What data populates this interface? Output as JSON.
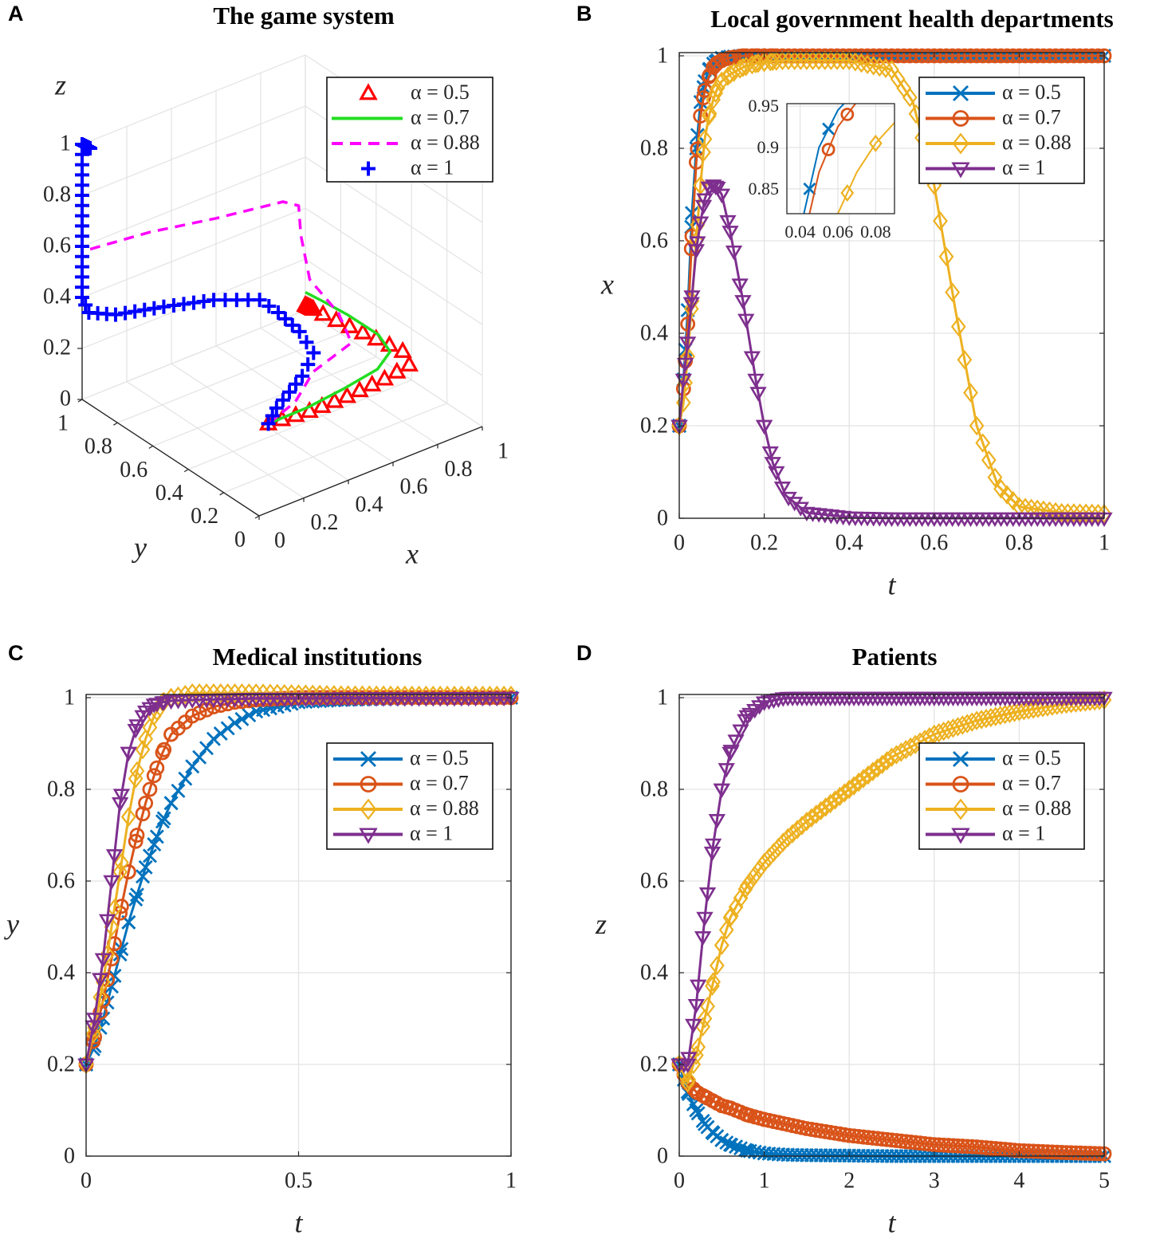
{
  "panels": [
    {
      "letter": "A",
      "title": "The game system"
    },
    {
      "letter": "B",
      "title": "Local government health departments"
    },
    {
      "letter": "C",
      "title": "Medical institutions"
    },
    {
      "letter": "D",
      "title": "Patients"
    }
  ],
  "chart_data": [
    {
      "panel": "A",
      "type": "line3d",
      "title": "The game system",
      "xlabel": "x",
      "ylabel": "y",
      "zlabel": "z",
      "xlim": [
        0,
        1
      ],
      "ylim": [
        0,
        1
      ],
      "zlim": [
        0,
        1
      ],
      "ticks": [
        0,
        0.2,
        0.4,
        0.6,
        0.8,
        1
      ],
      "tick_labels": [
        "0",
        "0.2",
        "0.4",
        "0.6",
        "0.8",
        "1"
      ],
      "grid": true,
      "legend": "top-right",
      "series": [
        {
          "name": "α = 0.5",
          "color": "#FF0000",
          "style": "markers",
          "marker": "triangle-up",
          "points": [
            [
              0.2,
              0.2,
              0.2
            ],
            [
              0.4,
              0.22,
              0.17
            ],
            [
              0.6,
              0.26,
              0.14
            ],
            [
              0.8,
              0.3,
              0.12
            ],
            [
              0.95,
              0.35,
              0.1
            ],
            [
              1,
              0.45,
              0.09
            ],
            [
              1,
              0.6,
              0.07
            ],
            [
              1,
              0.75,
              0.05
            ],
            [
              1,
              0.9,
              0.03
            ],
            [
              1,
              1,
              0.02
            ]
          ]
        },
        {
          "name": "α = 0.7",
          "color": "#22DD22",
          "style": "solid",
          "marker": "none",
          "points": [
            [
              0.2,
              0.2,
              0.2
            ],
            [
              0.4,
              0.23,
              0.18
            ],
            [
              0.6,
              0.28,
              0.16
            ],
            [
              0.8,
              0.34,
              0.14
            ],
            [
              0.92,
              0.42,
              0.13
            ],
            [
              0.97,
              0.55,
              0.12
            ],
            [
              0.99,
              0.75,
              0.1
            ],
            [
              1,
              0.9,
              0.08
            ],
            [
              1,
              1,
              0.07
            ]
          ]
        },
        {
          "name": "α = 0.88",
          "color": "#FF00FF",
          "style": "dashed",
          "marker": "none",
          "points": [
            [
              0.2,
              0.2,
              0.2
            ],
            [
              0.4,
              0.3,
              0.17
            ],
            [
              0.6,
              0.45,
              0.15
            ],
            [
              0.85,
              0.55,
              0.13
            ],
            [
              0.95,
              0.75,
              0.12
            ],
            [
              0.98,
              0.95,
              0.15
            ],
            [
              0.98,
              1,
              0.3
            ],
            [
              0.97,
              1,
              0.42
            ],
            [
              0.9,
              1,
              0.46
            ],
            [
              0.6,
              1,
              0.5
            ],
            [
              0.3,
              1,
              0.55
            ],
            [
              0,
              1,
              0.58
            ]
          ]
        },
        {
          "name": "α = 1",
          "color": "#0000FF",
          "style": "markers",
          "marker": "plus",
          "points": [
            [
              0.2,
              0.2,
              0.2
            ],
            [
              0.3,
              0.28,
              0.19
            ],
            [
              0.55,
              0.45,
              0.15
            ],
            [
              0.68,
              0.55,
              0.15
            ],
            [
              0.72,
              0.68,
              0.16
            ],
            [
              0.72,
              0.8,
              0.18
            ],
            [
              0.7,
              0.88,
              0.2
            ],
            [
              0.55,
              0.95,
              0.22
            ],
            [
              0.35,
              0.98,
              0.25
            ],
            [
              0.15,
              1,
              0.28
            ],
            [
              0.03,
              1,
              0.33
            ],
            [
              0,
              1,
              0.4
            ],
            [
              0,
              1,
              0.6
            ],
            [
              0,
              1,
              0.8
            ],
            [
              0,
              1,
              1
            ]
          ]
        }
      ]
    },
    {
      "panel": "B",
      "type": "line",
      "title": "Local government health departments",
      "xlabel": "t",
      "ylabel": "x",
      "xlim": [
        0,
        1
      ],
      "ylim": [
        0,
        1
      ],
      "xticks": [
        0,
        0.2,
        0.4,
        0.6,
        0.8,
        1
      ],
      "xtick_labels": [
        "0",
        "0.2",
        "0.4",
        "0.6",
        "0.8",
        "1"
      ],
      "yticks": [
        0,
        0.2,
        0.4,
        0.6,
        0.8,
        1
      ],
      "ytick_labels": [
        "0",
        "0.2",
        "0.4",
        "0.6",
        "0.8",
        "1"
      ],
      "grid": true,
      "legend": "top-right",
      "x": [
        0,
        0.01,
        0.02,
        0.03,
        0.04,
        0.05,
        0.06,
        0.07,
        0.08,
        0.09,
        0.1,
        0.12,
        0.15,
        0.18,
        0.2,
        0.22,
        0.25,
        0.3,
        0.4,
        0.5,
        0.55,
        0.6,
        0.65,
        0.7,
        0.75,
        0.8,
        0.9,
        1
      ],
      "series": [
        {
          "name": "α = 0.5",
          "color": "#0072BD",
          "marker": "x",
          "values": [
            0.2,
            0.3,
            0.45,
            0.66,
            0.8,
            0.9,
            0.945,
            0.97,
            0.983,
            0.99,
            0.995,
            0.998,
            1,
            1,
            1,
            1,
            1,
            1,
            1,
            1,
            1,
            1,
            1,
            1,
            1,
            1,
            1,
            1
          ]
        },
        {
          "name": "α = 0.7",
          "color": "#D95319",
          "marker": "circle",
          "values": [
            0.2,
            0.28,
            0.42,
            0.61,
            0.77,
            0.87,
            0.925,
            0.955,
            0.975,
            0.985,
            0.99,
            0.996,
            1,
            1,
            1,
            1,
            1,
            1,
            1,
            1,
            1,
            1,
            1,
            1,
            1,
            1,
            1,
            1
          ]
        },
        {
          "name": "α = 0.88",
          "color": "#EDB120",
          "marker": "diamond",
          "values": [
            0.2,
            0.25,
            0.35,
            0.47,
            0.6,
            0.72,
            0.82,
            0.87,
            0.905,
            0.93,
            0.945,
            0.96,
            0.975,
            0.983,
            0.986,
            0.988,
            0.99,
            0.99,
            0.99,
            0.97,
            0.9,
            0.72,
            0.45,
            0.2,
            0.07,
            0.025,
            0.012,
            0.01
          ]
        },
        {
          "name": "α = 1",
          "color": "#7E2F8E",
          "marker": "triangle-down",
          "values": [
            0.2,
            0.3,
            0.38,
            0.48,
            0.58,
            0.64,
            0.69,
            0.715,
            0.72,
            0.715,
            0.7,
            0.62,
            0.47,
            0.3,
            0.2,
            0.12,
            0.05,
            0.012,
            0.002,
            0,
            0,
            0,
            0,
            0,
            0,
            0,
            0,
            0
          ]
        }
      ],
      "inset": {
        "xlim": [
          0.033,
          0.09
        ],
        "ylim": [
          0.82,
          0.953
        ],
        "xticks": [
          0.04,
          0.06,
          0.08
        ],
        "xtick_labels": [
          "0.04",
          "0.06",
          "0.08"
        ],
        "yticks": [
          0.85,
          0.9,
          0.95
        ],
        "ytick_labels": [
          "0.85",
          "0.9",
          "0.95"
        ]
      }
    },
    {
      "panel": "C",
      "type": "line",
      "title": "Medical institutions",
      "xlabel": "t",
      "ylabel": "y",
      "xlim": [
        0,
        1
      ],
      "ylim": [
        0,
        1
      ],
      "xticks": [
        0,
        0.5,
        1
      ],
      "xtick_labels": [
        "0",
        "0.5",
        "1"
      ],
      "yticks": [
        0,
        0.2,
        0.4,
        0.6,
        0.8,
        1
      ],
      "ytick_labels": [
        "0",
        "0.2",
        "0.4",
        "0.6",
        "0.8",
        "1"
      ],
      "grid": true,
      "legend": "top-right",
      "x": [
        0,
        0.02,
        0.04,
        0.06,
        0.08,
        0.1,
        0.12,
        0.14,
        0.16,
        0.18,
        0.2,
        0.25,
        0.3,
        0.35,
        0.4,
        0.5,
        0.6,
        0.8,
        1
      ],
      "series": [
        {
          "name": "α = 0.5",
          "color": "#0072BD",
          "marker": "x",
          "values": [
            0.2,
            0.24,
            0.3,
            0.37,
            0.44,
            0.51,
            0.57,
            0.63,
            0.68,
            0.73,
            0.77,
            0.85,
            0.91,
            0.945,
            0.97,
            0.99,
            0.995,
            1,
            1
          ]
        },
        {
          "name": "α = 0.7",
          "color": "#D95319",
          "marker": "circle",
          "values": [
            0.2,
            0.26,
            0.34,
            0.43,
            0.53,
            0.62,
            0.7,
            0.77,
            0.83,
            0.88,
            0.92,
            0.96,
            0.98,
            0.99,
            0.995,
            1,
            1,
            1,
            1
          ]
        },
        {
          "name": "α = 0.88",
          "color": "#EDB120",
          "marker": "diamond",
          "values": [
            0.2,
            0.28,
            0.38,
            0.5,
            0.62,
            0.74,
            0.84,
            0.91,
            0.96,
            0.99,
            1,
            1.01,
            1.01,
            1.01,
            1.01,
            1.008,
            1.006,
            1.005,
            1.005
          ]
        },
        {
          "name": "α = 1",
          "color": "#7E2F8E",
          "marker": "triangle-down",
          "values": [
            0.2,
            0.3,
            0.43,
            0.6,
            0.77,
            0.88,
            0.94,
            0.97,
            0.985,
            0.99,
            0.993,
            0.995,
            0.996,
            0.997,
            0.998,
            0.998,
            0.999,
            0.999,
            1
          ]
        }
      ]
    },
    {
      "panel": "D",
      "type": "line",
      "title": "Patients",
      "xlabel": "t",
      "ylabel": "z",
      "xlim": [
        0,
        5
      ],
      "ylim": [
        0,
        1
      ],
      "xticks": [
        0,
        1,
        2,
        3,
        4,
        5
      ],
      "xtick_labels": [
        "0",
        "1",
        "2",
        "3",
        "4",
        "5"
      ],
      "yticks": [
        0,
        0.2,
        0.4,
        0.6,
        0.8,
        1
      ],
      "ytick_labels": [
        "0",
        "0.2",
        "0.4",
        "0.6",
        "0.8",
        "1"
      ],
      "grid": true,
      "legend": "top-right",
      "x": [
        0,
        0.1,
        0.2,
        0.3,
        0.4,
        0.5,
        0.6,
        0.8,
        1,
        1.25,
        1.5,
        2,
        2.5,
        3,
        3.5,
        4,
        4.5,
        5
      ],
      "series": [
        {
          "name": "α = 0.5",
          "color": "#0072BD",
          "marker": "x",
          "values": [
            0.2,
            0.14,
            0.1,
            0.07,
            0.05,
            0.035,
            0.025,
            0.012,
            0.006,
            0.003,
            0.002,
            0.001,
            0,
            0,
            0,
            0,
            0,
            0
          ]
        },
        {
          "name": "α = 0.7",
          "color": "#D95319",
          "marker": "circle",
          "values": [
            0.2,
            0.16,
            0.14,
            0.13,
            0.12,
            0.11,
            0.105,
            0.09,
            0.08,
            0.07,
            0.06,
            0.045,
            0.035,
            0.025,
            0.02,
            0.012,
            0.008,
            0.005
          ]
        },
        {
          "name": "α = 0.88",
          "color": "#EDB120",
          "marker": "diamond",
          "values": [
            0.2,
            0.16,
            0.22,
            0.3,
            0.38,
            0.46,
            0.52,
            0.59,
            0.64,
            0.69,
            0.73,
            0.8,
            0.87,
            0.92,
            0.95,
            0.97,
            0.985,
            0.995
          ]
        },
        {
          "name": "α = 1",
          "color": "#7E2F8E",
          "marker": "triangle-down",
          "values": [
            0.2,
            0.2,
            0.33,
            0.52,
            0.68,
            0.8,
            0.88,
            0.96,
            0.99,
            1,
            1,
            1,
            1,
            1,
            1,
            1,
            1,
            1
          ]
        }
      ]
    }
  ]
}
